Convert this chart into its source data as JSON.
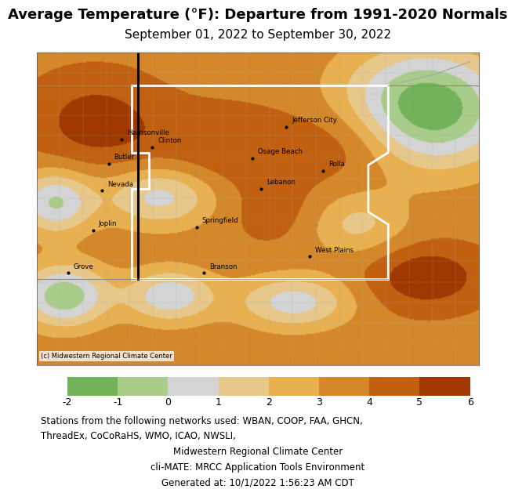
{
  "title_line1": "Average Temperature (°F): Departure from 1991-2020 Normals",
  "title_line2": "September 01, 2022 to September 30, 2022",
  "colorbar_ticks": [
    -2,
    -1,
    0,
    1,
    2,
    3,
    4,
    5,
    6
  ],
  "colorbar_colors": [
    "#72b35a",
    "#a8cc8a",
    "#d4d4d4",
    "#e8c88a",
    "#e8b050",
    "#d4882a",
    "#c06010",
    "#a03800"
  ],
  "footnote_lines": [
    "Stations from the following networks used: WBAN, COOP, FAA, GHCN,",
    "ThreadEx, CoCoRaHS, WMO, ICAO, NWSLI,",
    "Midwestern Regional Climate Center",
    "cli-MATE: MRCC Application Tools Environment",
    "Generated at: 10/1/2022 1:56:23 AM CDT"
  ],
  "copyright_text": "(c) Midwestern Regional Climate Center",
  "map_background_color": "#d8d8d8",
  "figure_background_color": "#ffffff",
  "title_fontsize": 13,
  "subtitle_fontsize": 11,
  "footnote_fontsize": 8.5
}
